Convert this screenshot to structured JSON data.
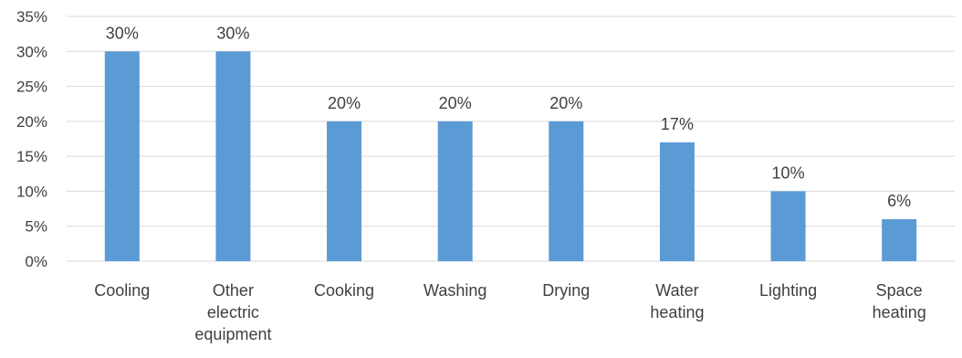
{
  "chart_data": {
    "type": "bar",
    "title": "",
    "xlabel": "",
    "ylabel": "",
    "ylim": [
      0,
      35
    ],
    "yticks": [
      0,
      5,
      10,
      15,
      20,
      25,
      30,
      35
    ],
    "ytick_labels": [
      "0%",
      "5%",
      "10%",
      "15%",
      "20%",
      "25%",
      "30%",
      "35%"
    ],
    "grid": true,
    "legend": "none",
    "bar_color": "#5b9bd5",
    "grid_color": "#d9d9d9",
    "text_color": "#404040",
    "categories": [
      [
        "Cooling"
      ],
      [
        "Other",
        "electric",
        "equipment"
      ],
      [
        "Cooking"
      ],
      [
        "Washing"
      ],
      [
        "Drying"
      ],
      [
        "Water",
        "heating"
      ],
      [
        "Lighting"
      ],
      [
        "Space",
        "heating"
      ]
    ],
    "values": [
      30,
      30,
      20,
      20,
      20,
      17,
      10,
      6
    ],
    "data_labels": [
      "30%",
      "30%",
      "20%",
      "20%",
      "20%",
      "17%",
      "10%",
      "6%"
    ]
  }
}
